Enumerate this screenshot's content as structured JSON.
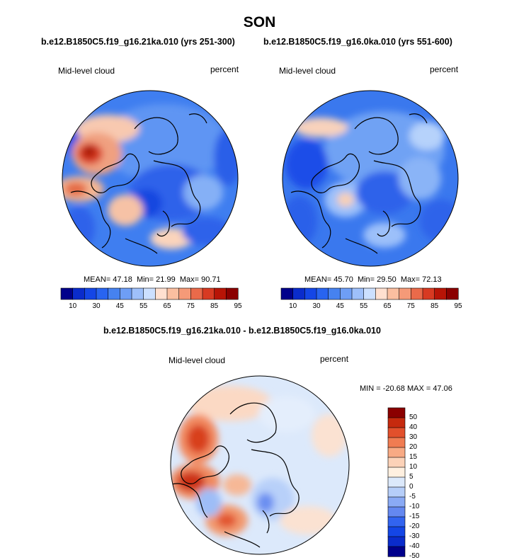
{
  "title": "SON",
  "colors": {
    "abs_scale": [
      "#00008b",
      "#0a2ccc",
      "#1446e6",
      "#2864f0",
      "#4682f0",
      "#6e9ef5",
      "#9ec0fa",
      "#cce0ff",
      "#ffe0d0",
      "#fbbfa0",
      "#f59a78",
      "#ea6a4a",
      "#d83a22",
      "#b81406",
      "#8b0000"
    ],
    "diff_scale": [
      "#00008b",
      "#0a2ccc",
      "#1446e6",
      "#3264f0",
      "#6488f0",
      "#8aaaf5",
      "#b6cef9",
      "#dce9fb",
      "#fff0e0",
      "#fcd2b8",
      "#f8aa84",
      "#f07c52",
      "#e2502c",
      "#c62a0e",
      "#8b0000"
    ]
  },
  "chart_data": [
    {
      "type": "heatmap",
      "title": "b.e12.B1850C5.f19_g16.21ka.010 (yrs 251-300)",
      "variable": "Mid-level cloud",
      "units": "percent",
      "stats": {
        "mean_label": "MEAN=",
        "mean": "47.18",
        "min_label": "Min=",
        "min": "21.99",
        "max_label": "Max=",
        "max": "90.71"
      },
      "colorbar_levels": [
        10,
        15,
        20,
        25,
        30,
        35,
        40,
        45,
        50,
        55,
        60,
        65,
        70,
        75,
        80,
        85,
        90,
        95
      ],
      "colorbar_labels": [
        "10",
        "30",
        "45",
        "55",
        "65",
        "75",
        "85",
        "95"
      ]
    },
    {
      "type": "heatmap",
      "title": "b.e12.B1850C5.f19_g16.0ka.010 (yrs 551-600)",
      "variable": "Mid-level cloud",
      "units": "percent",
      "stats": {
        "mean_label": "MEAN=",
        "mean": "45.70",
        "min_label": "Min=",
        "min": "29.50",
        "max_label": "Max=",
        "max": "72.13"
      },
      "colorbar_levels": [
        10,
        15,
        20,
        25,
        30,
        35,
        40,
        45,
        50,
        55,
        60,
        65,
        70,
        75,
        80,
        85,
        90,
        95
      ],
      "colorbar_labels": [
        "10",
        "30",
        "45",
        "55",
        "65",
        "75",
        "85",
        "95"
      ]
    },
    {
      "type": "heatmap",
      "title": "b.e12.B1850C5.f19_g16.21ka.010 - b.e12.B1850C5.f19_g16.0ka.010",
      "variable": "Mid-level cloud",
      "units": "percent",
      "stats_text": "MIN = -20.68 MAX = 47.06",
      "colorbar_levels": [
        -50,
        -40,
        -30,
        -20,
        -15,
        -10,
        -5,
        0,
        5,
        10,
        15,
        20,
        30,
        40,
        50
      ],
      "colorbar_labels": [
        "50",
        "40",
        "30",
        "20",
        "15",
        "10",
        "5",
        "0",
        "-5",
        "-10",
        "-15",
        "-20",
        "-30",
        "-40",
        "-50"
      ]
    }
  ]
}
